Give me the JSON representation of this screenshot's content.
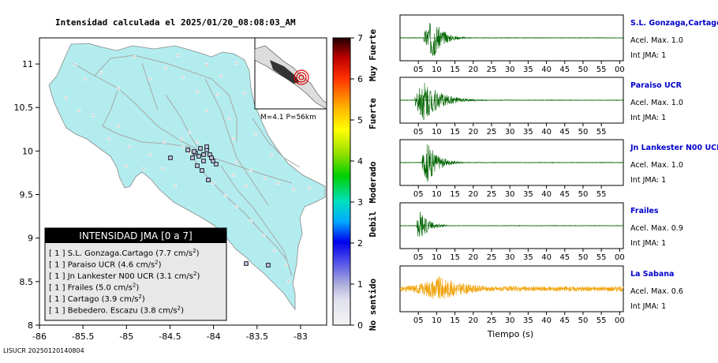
{
  "map": {
    "title": "Intensidad calculada el 2025/01/20_08:08:03_AM",
    "x_ticks": [
      "-86",
      "-85.5",
      "-85",
      "-84.5",
      "-84",
      "-83.5",
      "-83"
    ],
    "y_ticks": [
      "11",
      "10.5",
      "10",
      "9.5",
      "9",
      "8.5",
      "8"
    ],
    "inset_label": "M=4.1 P=56km",
    "legend": {
      "title": "INTENSIDAD JMA [0 a 7]",
      "rows": [
        {
          "level": "[ 1 ]",
          "station": "S.L. Gonzaga.Cartago",
          "accel": "7.7"
        },
        {
          "level": "[ 1 ]",
          "station": "Paraiso UCR",
          "accel": "4.6"
        },
        {
          "level": "[ 1 ]",
          "station": "Jn Lankester N00 UCR",
          "accel": "3.1"
        },
        {
          "level": "[ 1 ]",
          "station": "Frailes",
          "accel": "5.0"
        },
        {
          "level": "[ 1 ]",
          "station": "Cartago",
          "accel": "3.9"
        },
        {
          "level": "[ 1 ]",
          "station": "Bebedero. Escazu",
          "accel": "3.8"
        }
      ],
      "unit": "cm/s",
      "unit_exp": "2"
    },
    "colors": {
      "land": "#b2ecee",
      "sea": "#ffffff"
    }
  },
  "colorbar": {
    "ticks": [
      "0",
      "1",
      "2",
      "3",
      "4",
      "5",
      "6",
      "7"
    ],
    "labels": [
      "No sentido",
      "Debil",
      "Moderado",
      "Fuerte",
      "Muy Fuerte"
    ]
  },
  "chart_data": {
    "type": "line",
    "title": "",
    "xlabel": "Tiempo (s)",
    "x_tick_labels": [
      "05",
      "10",
      "15",
      "20",
      "25",
      "30",
      "35",
      "40",
      "45",
      "50",
      "55",
      "00"
    ],
    "series": [
      {
        "name": "S.L. Gonzaga,Cartago",
        "acel_label": "Acel. Max. 1.0",
        "int_label": "Int JMA: 1",
        "color": "#006400",
        "onset_s": 6.5,
        "peak_s": 9,
        "amp": 1.0,
        "decay": 0.38,
        "x_ticks": [
          "05",
          "10",
          "15",
          "20",
          "25",
          "30",
          "35",
          "40",
          "45",
          "50",
          "55",
          "00"
        ]
      },
      {
        "name": "Paraiso UCR",
        "acel_label": "Acel. Max. 1.0",
        "int_label": "Int JMA: 1",
        "color": "#006400",
        "onset_s": 4.0,
        "peak_s": 6.5,
        "amp": 1.0,
        "decay": 0.22,
        "x_ticks": [
          "05",
          "10",
          "15",
          "20",
          "25",
          "30",
          "35",
          "40",
          "45",
          "50",
          "55"
        ]
      },
      {
        "name": "Jn Lankester N00 UCR",
        "acel_label": "Acel. Max. 1.0",
        "int_label": "Int JMA: 1",
        "color": "#006400",
        "onset_s": 6.0,
        "peak_s": 7.5,
        "amp": 1.0,
        "decay": 0.35,
        "x_ticks": [
          "05",
          "10",
          "15",
          "20",
          "25",
          "30",
          "35",
          "40",
          "45",
          "50",
          "55"
        ]
      },
      {
        "name": "Frailes",
        "acel_label": "Acel. Max. 0.9",
        "int_label": "Int JMA: 1",
        "color": "#006400",
        "onset_s": 4.5,
        "peak_s": 5.2,
        "amp": 0.9,
        "decay": 0.45,
        "x_ticks": [
          "05",
          "10",
          "15",
          "20",
          "25",
          "30",
          "35",
          "40",
          "45",
          "50",
          "55",
          "00"
        ]
      },
      {
        "name": "La Sabana",
        "acel_label": "Acel. Max. 0.6",
        "int_label": "Int JMA: 1",
        "color": "#f0a000",
        "onset_s": 0.0,
        "peak_s": 10.5,
        "amp": 0.6,
        "decay": 0.12,
        "x_ticks": [
          "05",
          "10",
          "15",
          "20",
          "25",
          "30",
          "35",
          "40",
          "45",
          "50",
          "55",
          "00"
        ]
      }
    ]
  },
  "footer": "LISUCR 20250120140804"
}
